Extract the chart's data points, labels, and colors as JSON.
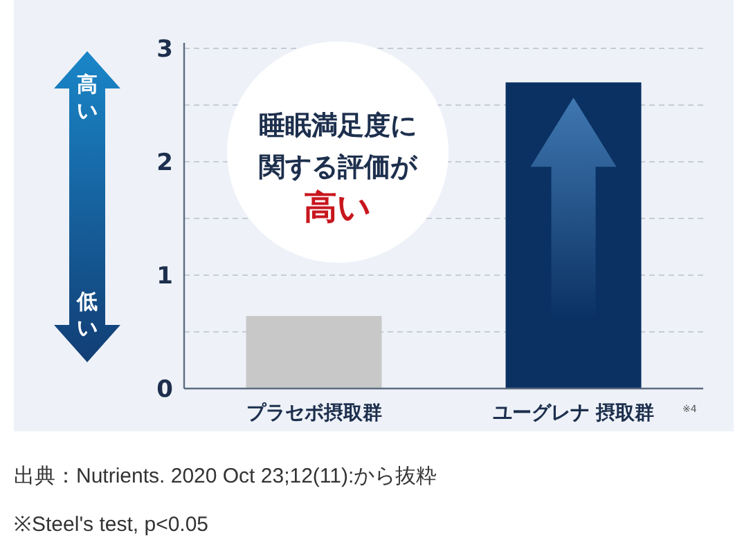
{
  "chart_data": {
    "type": "bar",
    "categories": [
      "プラセボ摂取群",
      "ユーグレナ 摂取群"
    ],
    "values": [
      0.64,
      2.7
    ],
    "colors": [
      "#c8c8c8",
      "#0b3163"
    ],
    "ylim": [
      0,
      3
    ],
    "yticks": [
      0,
      {
        "value": 0.5,
        "label": null
      },
      1,
      {
        "value": 1.5,
        "label": null
      },
      2,
      {
        "value": 2.5,
        "label": null
      },
      3
    ],
    "grid": "y",
    "annotations": [
      "高い",
      "低い",
      "睡眠満足度に関する評価が",
      "高い",
      "※4",
      "出典：Nutrients. 2020 Oct 23;12(11):から抜粋",
      "※Steel's test, p<0.05"
    ]
  }
}
